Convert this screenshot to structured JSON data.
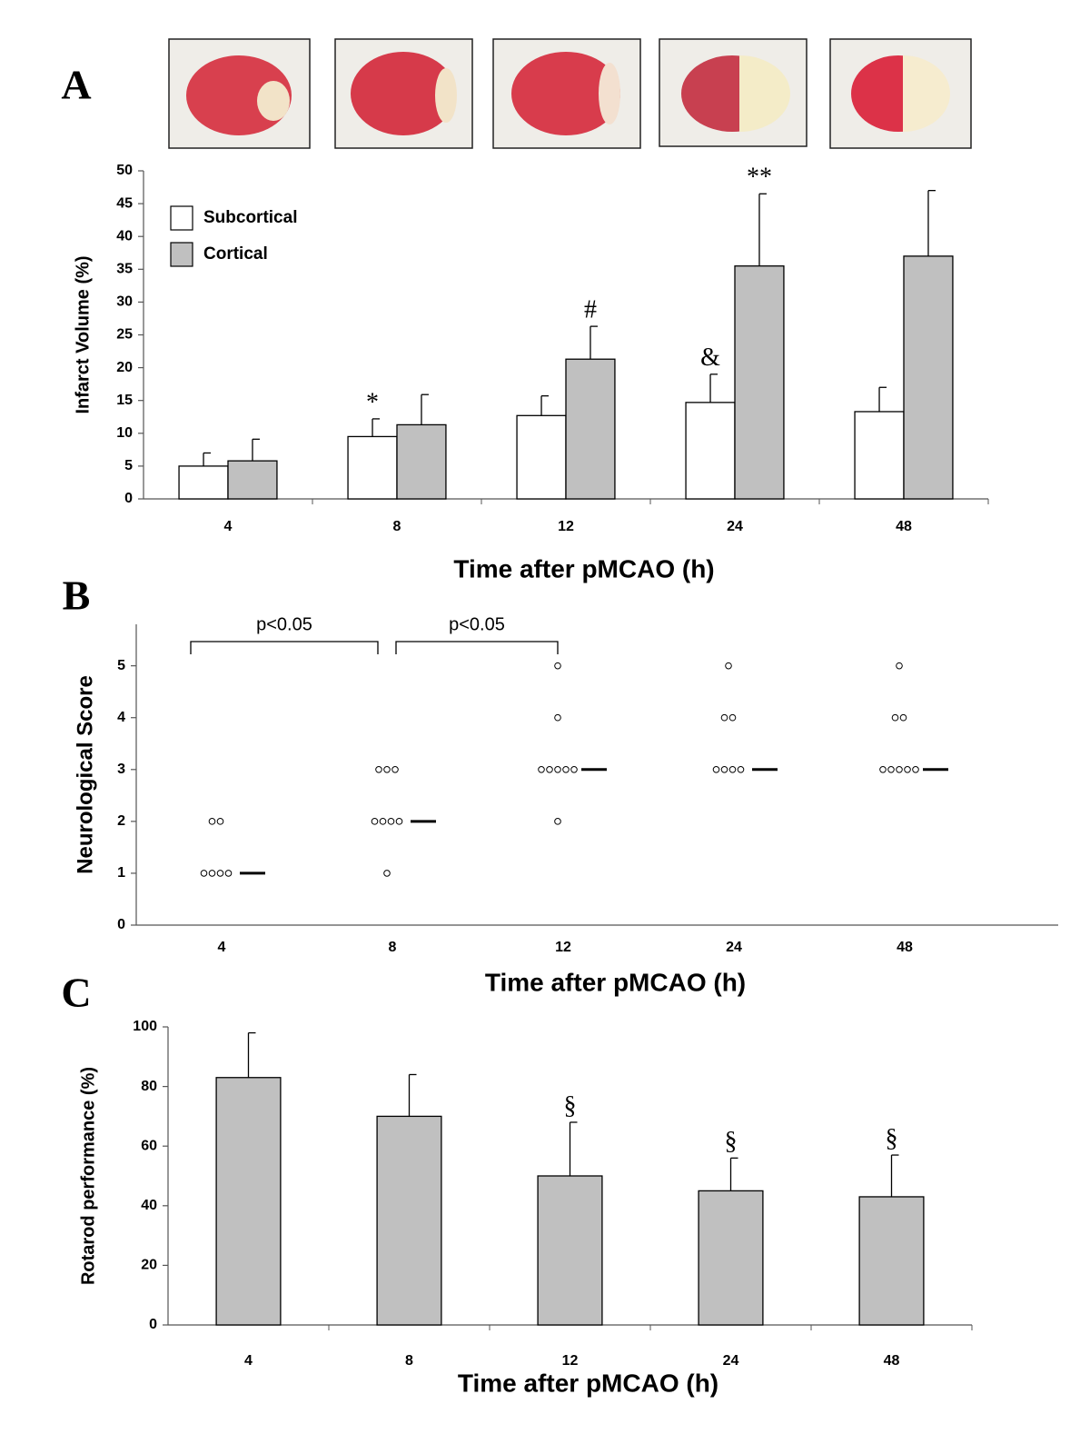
{
  "chart_data": [
    {
      "type": "bar",
      "label": "A",
      "x_label": "Time after pMCAO (h)",
      "y_label": "Infarct Volume (%)",
      "categories": [
        "4",
        "8",
        "12",
        "24",
        "48"
      ],
      "series": [
        {
          "name": "Subcortical",
          "color": "#ffffff",
          "values": [
            5,
            9.5,
            12.7,
            14.7,
            13.3
          ],
          "errors": [
            2,
            2.7,
            3,
            4.3,
            3.7
          ],
          "annotations": [
            null,
            "*",
            null,
            "&",
            null
          ]
        },
        {
          "name": "Cortical",
          "color": "#c0c0c0",
          "values": [
            5.8,
            11.3,
            21.3,
            35.5,
            37
          ],
          "errors": [
            3.3,
            4.6,
            5,
            11,
            10
          ],
          "annotations": [
            null,
            null,
            "#",
            "**",
            null
          ]
        }
      ],
      "ylim": [
        0,
        50
      ],
      "yticks": [
        0,
        5,
        10,
        15,
        20,
        25,
        30,
        35,
        40,
        45,
        50
      ],
      "legend": "upper left"
    },
    {
      "type": "dot",
      "label": "B",
      "x_label": "Time after pMCAO (h)",
      "y_label": "Neurological Score",
      "categories": [
        "4",
        "8",
        "12",
        "24",
        "48"
      ],
      "values": [
        [
          1,
          1,
          1,
          1,
          2,
          2
        ],
        [
          1,
          2,
          2,
          2,
          2,
          3,
          3,
          3
        ],
        [
          2,
          3,
          3,
          3,
          3,
          3,
          4,
          5
        ],
        [
          3,
          3,
          3,
          3,
          4,
          4,
          5
        ],
        [
          3,
          3,
          3,
          3,
          3,
          4,
          4,
          5
        ]
      ],
      "medians": [
        1,
        2,
        3,
        3,
        3
      ],
      "ylim": [
        0,
        5.8
      ],
      "yticks": [
        0,
        1,
        2,
        3,
        4,
        5
      ],
      "comparisons": [
        {
          "categories": [
            "4",
            "8"
          ],
          "label": "p<0.05"
        },
        {
          "categories": [
            "8",
            "12"
          ],
          "label": "p<0.05"
        }
      ]
    },
    {
      "type": "bar",
      "label": "C",
      "x_label": "Time after pMCAO (h)",
      "y_label": "Rotarod performance (%)",
      "categories": [
        "4",
        "8",
        "12",
        "24",
        "48"
      ],
      "series": [
        {
          "color": "#c0c0c0",
          "values": [
            83,
            70,
            50,
            45,
            43
          ],
          "errors": [
            15,
            14,
            18,
            11,
            14
          ],
          "annotations": [
            null,
            null,
            "§",
            "§",
            "§"
          ]
        }
      ],
      "ylim": [
        0,
        100
      ],
      "yticks": [
        0,
        20,
        40,
        60,
        80,
        100
      ]
    }
  ]
}
